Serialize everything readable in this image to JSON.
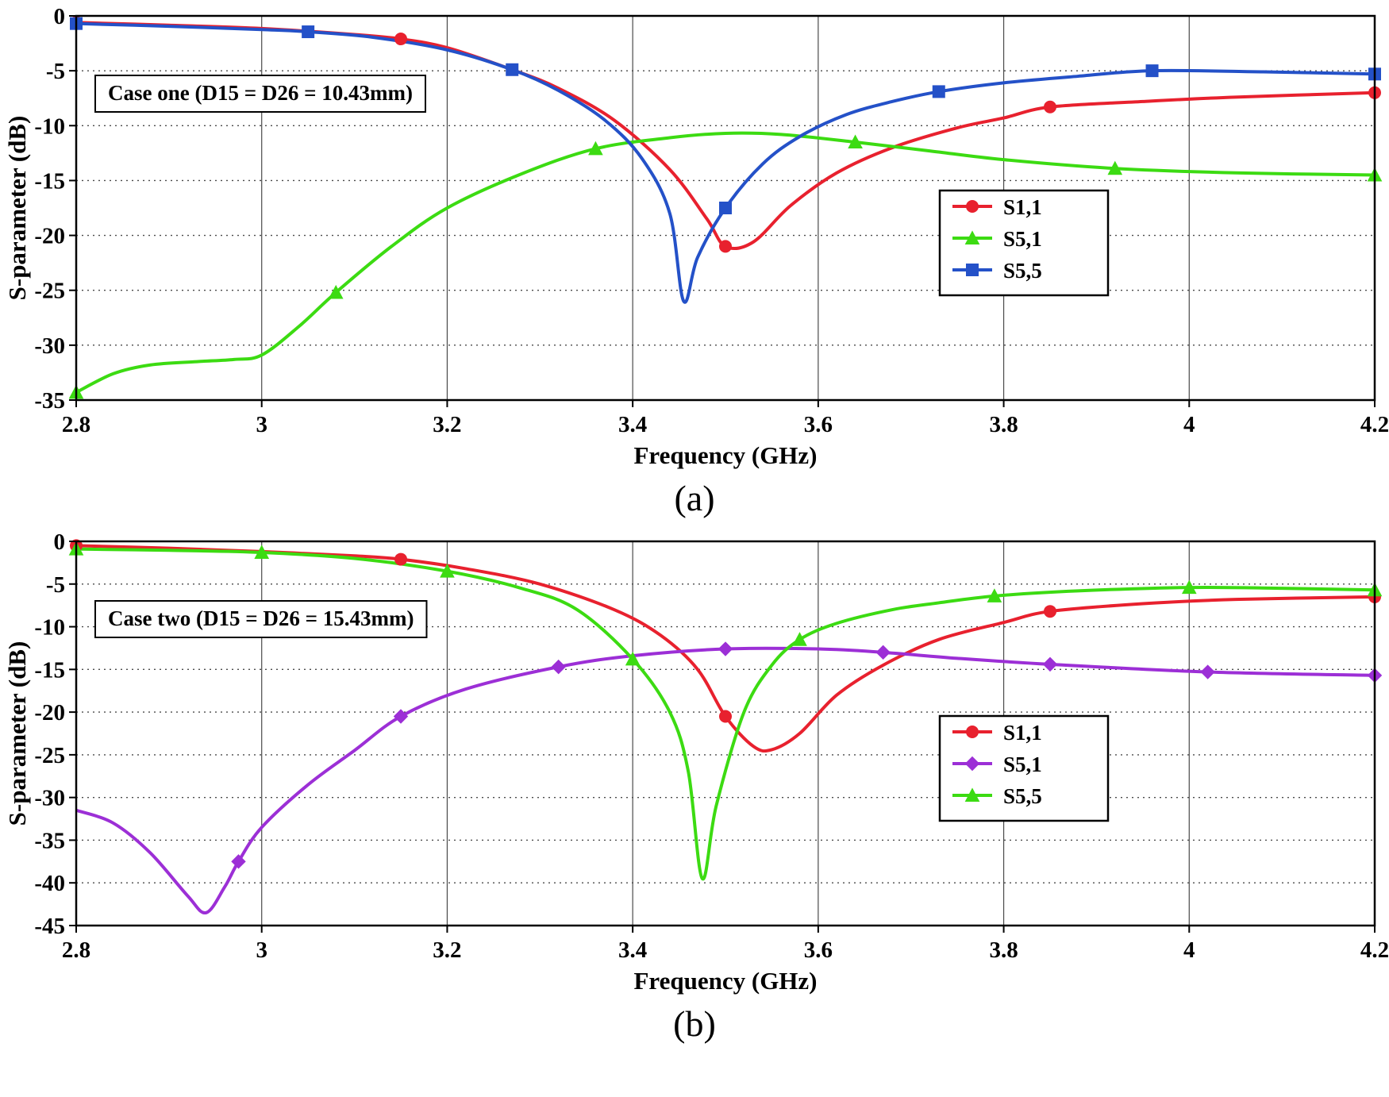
{
  "figure": {
    "background": "#ffffff",
    "grid_color": "#4a4a4a",
    "axis_color": "#000000",
    "label_a": "(a)",
    "label_b": "(b)"
  },
  "chart_data": [
    {
      "type": "line",
      "label": "(a)",
      "annotation": "Case one (D15 = D26 = 10.43mm)",
      "xlabel": "Frequency (GHz)",
      "ylabel": "S-parameter (dB)",
      "xlim": [
        2.8,
        4.2
      ],
      "ylim": [
        -35,
        0
      ],
      "xticks": [
        2.8,
        3,
        3.2,
        3.4,
        3.6,
        3.8,
        4,
        4.2
      ],
      "yticks": [
        0,
        -5,
        -10,
        -15,
        -20,
        -25,
        -30,
        -35
      ],
      "grid": true,
      "legend_position": "right-middle",
      "series": [
        {
          "name": "S1,1",
          "color": "#e8212e",
          "marker": "circle",
          "points": [
            [
              2.8,
              -0.6
            ],
            [
              2.9,
              -0.85
            ],
            [
              3.0,
              -1.15
            ],
            [
              3.1,
              -1.7
            ],
            [
              3.15,
              -2.1
            ],
            [
              3.2,
              -2.9
            ],
            [
              3.27,
              -4.9
            ],
            [
              3.32,
              -6.6
            ],
            [
              3.38,
              -9.5
            ],
            [
              3.44,
              -14.0
            ],
            [
              3.48,
              -18.5
            ],
            [
              3.5,
              -21.0
            ],
            [
              3.53,
              -20.6
            ],
            [
              3.57,
              -17.3
            ],
            [
              3.62,
              -14.3
            ],
            [
              3.68,
              -12.0
            ],
            [
              3.75,
              -10.2
            ],
            [
              3.8,
              -9.3
            ],
            [
              3.85,
              -8.3
            ],
            [
              3.95,
              -7.8
            ],
            [
              4.05,
              -7.4
            ],
            [
              4.2,
              -7.0
            ]
          ],
          "marker_points": [
            [
              2.8,
              -0.6
            ],
            [
              3.15,
              -2.1
            ],
            [
              3.5,
              -21.0
            ],
            [
              3.85,
              -8.3
            ],
            [
              4.2,
              -7.0
            ]
          ]
        },
        {
          "name": "S5,1",
          "color": "#3cdb12",
          "marker": "triangle",
          "points": [
            [
              2.8,
              -34.3
            ],
            [
              2.84,
              -32.6
            ],
            [
              2.88,
              -31.8
            ],
            [
              2.93,
              -31.5
            ],
            [
              2.97,
              -31.3
            ],
            [
              3.0,
              -30.9
            ],
            [
              3.04,
              -28.3
            ],
            [
              3.08,
              -25.2
            ],
            [
              3.14,
              -21.0
            ],
            [
              3.2,
              -17.5
            ],
            [
              3.28,
              -14.4
            ],
            [
              3.36,
              -12.1
            ],
            [
              3.44,
              -11.1
            ],
            [
              3.5,
              -10.7
            ],
            [
              3.56,
              -10.8
            ],
            [
              3.64,
              -11.5
            ],
            [
              3.72,
              -12.3
            ],
            [
              3.8,
              -13.1
            ],
            [
              3.92,
              -13.9
            ],
            [
              4.05,
              -14.3
            ],
            [
              4.2,
              -14.5
            ]
          ],
          "marker_points": [
            [
              2.8,
              -34.3
            ],
            [
              3.08,
              -25.2
            ],
            [
              3.36,
              -12.1
            ],
            [
              3.64,
              -11.5
            ],
            [
              3.92,
              -13.9
            ],
            [
              4.2,
              -14.5
            ]
          ]
        },
        {
          "name": "S5,5",
          "color": "#2451c8",
          "marker": "square",
          "points": [
            [
              2.8,
              -0.7
            ],
            [
              2.9,
              -0.95
            ],
            [
              3.0,
              -1.25
            ],
            [
              3.05,
              -1.45
            ],
            [
              3.12,
              -1.95
            ],
            [
              3.2,
              -3.1
            ],
            [
              3.27,
              -4.9
            ],
            [
              3.32,
              -6.8
            ],
            [
              3.37,
              -9.5
            ],
            [
              3.41,
              -13.0
            ],
            [
              3.44,
              -18.0
            ],
            [
              3.455,
              -26.0
            ],
            [
              3.47,
              -22.0
            ],
            [
              3.5,
              -17.5
            ],
            [
              3.54,
              -13.5
            ],
            [
              3.58,
              -11.0
            ],
            [
              3.63,
              -9.0
            ],
            [
              3.68,
              -7.8
            ],
            [
              3.73,
              -6.9
            ],
            [
              3.8,
              -6.1
            ],
            [
              3.88,
              -5.5
            ],
            [
              3.96,
              -5.0
            ],
            [
              4.08,
              -5.1
            ],
            [
              4.2,
              -5.3
            ]
          ],
          "marker_points": [
            [
              2.8,
              -0.7
            ],
            [
              3.05,
              -1.45
            ],
            [
              3.27,
              -4.9
            ],
            [
              3.5,
              -17.5
            ],
            [
              3.73,
              -6.9
            ],
            [
              3.96,
              -5.0
            ],
            [
              4.2,
              -5.3
            ]
          ]
        }
      ]
    },
    {
      "type": "line",
      "label": "(b)",
      "annotation": "Case two (D15 = D26 = 15.43mm)",
      "xlabel": "Frequency (GHz)",
      "ylabel": "S-parameter (dB)",
      "xlim": [
        2.8,
        4.2
      ],
      "ylim": [
        -45,
        0
      ],
      "xticks": [
        2.8,
        3,
        3.2,
        3.4,
        3.6,
        3.8,
        4,
        4.2
      ],
      "yticks": [
        0,
        -5,
        -10,
        -15,
        -20,
        -25,
        -30,
        -35,
        -40,
        -45
      ],
      "grid": true,
      "legend_position": "right-middle",
      "series": [
        {
          "name": "S1,1",
          "color": "#e8212e",
          "marker": "circle",
          "points": [
            [
              2.8,
              -0.5
            ],
            [
              2.9,
              -0.8
            ],
            [
              3.0,
              -1.2
            ],
            [
              3.1,
              -1.7
            ],
            [
              3.15,
              -2.1
            ],
            [
              3.22,
              -3.2
            ],
            [
              3.3,
              -5.0
            ],
            [
              3.38,
              -8.0
            ],
            [
              3.43,
              -11.0
            ],
            [
              3.47,
              -15.0
            ],
            [
              3.5,
              -20.5
            ],
            [
              3.53,
              -24.0
            ],
            [
              3.55,
              -24.4
            ],
            [
              3.58,
              -22.5
            ],
            [
              3.62,
              -18.0
            ],
            [
              3.67,
              -14.5
            ],
            [
              3.73,
              -11.5
            ],
            [
              3.8,
              -9.5
            ],
            [
              3.85,
              -8.2
            ],
            [
              3.95,
              -7.3
            ],
            [
              4.05,
              -6.8
            ],
            [
              4.2,
              -6.5
            ]
          ],
          "marker_points": [
            [
              2.8,
              -0.5
            ],
            [
              3.15,
              -2.1
            ],
            [
              3.5,
              -20.5
            ],
            [
              3.85,
              -8.2
            ],
            [
              4.2,
              -6.5
            ]
          ]
        },
        {
          "name": "S5,1",
          "color": "#9c2fd6",
          "marker": "diamond",
          "points": [
            [
              2.8,
              -31.5
            ],
            [
              2.84,
              -33.0
            ],
            [
              2.88,
              -36.5
            ],
            [
              2.92,
              -41.5
            ],
            [
              2.94,
              -43.5
            ],
            [
              2.96,
              -40.5
            ],
            [
              2.975,
              -37.5
            ],
            [
              3.0,
              -33.5
            ],
            [
              3.05,
              -28.5
            ],
            [
              3.1,
              -24.5
            ],
            [
              3.15,
              -20.5
            ],
            [
              3.22,
              -17.3
            ],
            [
              3.32,
              -14.7
            ],
            [
              3.4,
              -13.4
            ],
            [
              3.5,
              -12.6
            ],
            [
              3.6,
              -12.6
            ],
            [
              3.67,
              -13.0
            ],
            [
              3.75,
              -13.7
            ],
            [
              3.85,
              -14.4
            ],
            [
              4.02,
              -15.3
            ],
            [
              4.2,
              -15.7
            ]
          ],
          "marker_points": [
            [
              2.975,
              -37.5
            ],
            [
              3.15,
              -20.5
            ],
            [
              3.32,
              -14.7
            ],
            [
              3.5,
              -12.6
            ],
            [
              3.67,
              -13.0
            ],
            [
              3.85,
              -14.4
            ],
            [
              4.02,
              -15.3
            ],
            [
              4.2,
              -15.7
            ]
          ]
        },
        {
          "name": "S5,5",
          "color": "#3cdb12",
          "marker": "triangle",
          "points": [
            [
              2.8,
              -0.9
            ],
            [
              2.9,
              -1.05
            ],
            [
              3.0,
              -1.3
            ],
            [
              3.1,
              -2.0
            ],
            [
              3.2,
              -3.5
            ],
            [
              3.28,
              -5.5
            ],
            [
              3.34,
              -8.0
            ],
            [
              3.4,
              -13.8
            ],
            [
              3.44,
              -20.0
            ],
            [
              3.46,
              -27.0
            ],
            [
              3.475,
              -39.5
            ],
            [
              3.49,
              -31.0
            ],
            [
              3.52,
              -20.0
            ],
            [
              3.55,
              -14.5
            ],
            [
              3.58,
              -11.5
            ],
            [
              3.62,
              -9.6
            ],
            [
              3.68,
              -8.0
            ],
            [
              3.73,
              -7.2
            ],
            [
              3.79,
              -6.4
            ],
            [
              3.88,
              -5.8
            ],
            [
              4.0,
              -5.4
            ],
            [
              4.1,
              -5.5
            ],
            [
              4.2,
              -5.7
            ]
          ],
          "marker_points": [
            [
              2.8,
              -0.9
            ],
            [
              3.0,
              -1.3
            ],
            [
              3.2,
              -3.5
            ],
            [
              3.4,
              -13.8
            ],
            [
              3.58,
              -11.5
            ],
            [
              3.79,
              -6.4
            ],
            [
              4.0,
              -5.4
            ],
            [
              4.2,
              -5.7
            ]
          ]
        }
      ]
    }
  ]
}
